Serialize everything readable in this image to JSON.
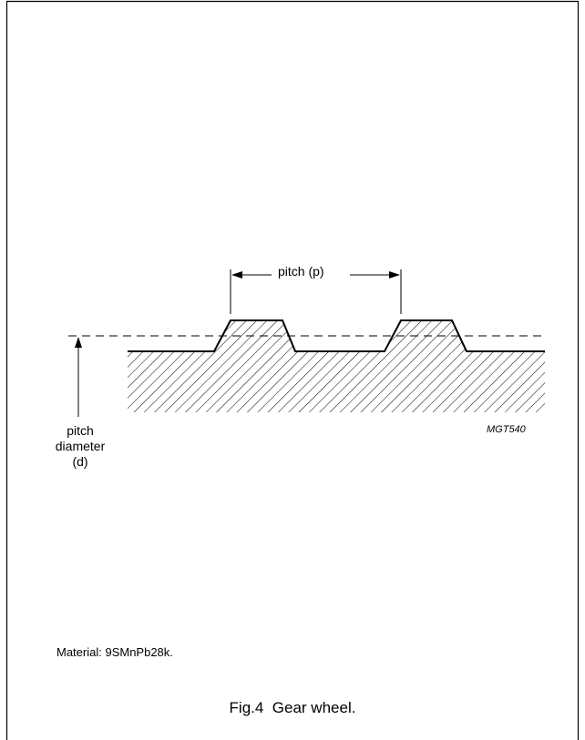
{
  "diagram": {
    "pitch_label": "pitch (p)",
    "pitch_diameter_label": [
      "pitch",
      "diameter",
      "(d)"
    ],
    "figure_code": "MGT540"
  },
  "material_note": "Material: 9SMnPb28k.",
  "caption": {
    "number": "Fig.4",
    "title": "Gear wheel."
  }
}
